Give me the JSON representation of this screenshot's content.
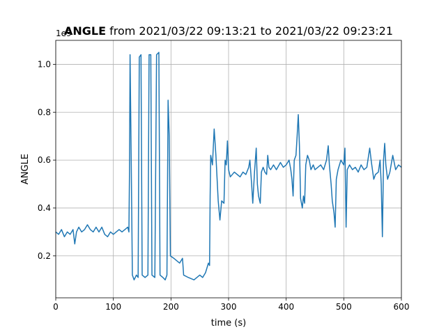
{
  "chart_data": {
    "type": "line",
    "title": {
      "variable": "ANGLE",
      "range": "from 2021/03/22 09:13:21 to 2021/03/22 09:23:21"
    },
    "xlabel": "time (s)",
    "ylabel": "ANGLE",
    "y_offset_label": "1e9",
    "xlim": [
      0,
      600
    ],
    "xticks": [
      0,
      100,
      200,
      300,
      400,
      500,
      600
    ],
    "ylim": [
      0.025,
      1.1
    ],
    "yticks": [
      0.2,
      0.4,
      0.6,
      0.8,
      1.0
    ],
    "grid": true,
    "series": [
      {
        "color": "#1f77b4",
        "x": [
          0,
          5,
          10,
          15,
          20,
          25,
          30,
          33,
          36,
          40,
          45,
          50,
          55,
          60,
          65,
          70,
          75,
          80,
          85,
          90,
          95,
          100,
          105,
          110,
          115,
          120,
          125,
          127,
          128,
          129,
          131,
          133,
          136,
          140,
          143,
          145,
          148,
          150,
          155,
          160,
          162,
          165,
          167,
          172,
          175,
          179,
          181,
          186,
          190,
          193,
          195,
          197,
          199,
          205,
          210,
          215,
          220,
          222,
          230,
          240,
          250,
          255,
          260,
          265,
          267,
          268,
          269,
          272,
          275,
          278,
          282,
          285,
          288,
          292,
          294,
          296,
          298,
          300,
          303,
          310,
          315,
          320,
          325,
          330,
          335,
          337,
          340,
          342,
          345,
          348,
          350,
          352,
          355,
          357,
          360,
          363,
          366,
          368,
          370,
          373,
          378,
          383,
          390,
          395,
          400,
          405,
          408,
          410,
          412,
          414,
          417,
          419,
          421,
          423,
          425,
          428,
          430,
          432,
          434,
          437,
          440,
          443,
          447,
          450,
          455,
          460,
          465,
          470,
          473,
          475,
          478,
          480,
          483,
          485,
          487,
          490,
          495,
          500,
          502,
          504,
          506,
          510,
          515,
          520,
          525,
          530,
          535,
          540,
          545,
          548,
          552,
          555,
          560,
          563,
          565,
          567,
          569,
          571,
          573,
          576,
          580,
          585,
          590,
          595,
          600
        ],
        "values": [
          0.3,
          0.29,
          0.31,
          0.28,
          0.3,
          0.29,
          0.31,
          0.25,
          0.3,
          0.32,
          0.3,
          0.31,
          0.33,
          0.31,
          0.3,
          0.32,
          0.3,
          0.32,
          0.29,
          0.28,
          0.3,
          0.29,
          0.3,
          0.31,
          0.3,
          0.31,
          0.32,
          0.3,
          0.55,
          1.04,
          0.6,
          0.12,
          0.1,
          0.12,
          0.11,
          1.03,
          1.04,
          0.12,
          0.11,
          0.12,
          1.04,
          1.04,
          0.12,
          0.11,
          1.04,
          1.05,
          0.12,
          0.11,
          0.1,
          0.12,
          0.85,
          0.7,
          0.2,
          0.19,
          0.18,
          0.17,
          0.19,
          0.12,
          0.11,
          0.1,
          0.12,
          0.11,
          0.13,
          0.17,
          0.16,
          0.45,
          0.62,
          0.58,
          0.73,
          0.62,
          0.43,
          0.35,
          0.43,
          0.42,
          0.6,
          0.58,
          0.68,
          0.56,
          0.53,
          0.55,
          0.54,
          0.53,
          0.55,
          0.54,
          0.57,
          0.6,
          0.5,
          0.42,
          0.55,
          0.65,
          0.5,
          0.45,
          0.42,
          0.55,
          0.57,
          0.55,
          0.54,
          0.62,
          0.57,
          0.56,
          0.58,
          0.56,
          0.59,
          0.57,
          0.58,
          0.6,
          0.56,
          0.52,
          0.45,
          0.6,
          0.62,
          0.7,
          0.79,
          0.66,
          0.44,
          0.4,
          0.45,
          0.42,
          0.58,
          0.62,
          0.6,
          0.56,
          0.58,
          0.56,
          0.57,
          0.58,
          0.56,
          0.6,
          0.66,
          0.58,
          0.5,
          0.43,
          0.38,
          0.32,
          0.52,
          0.56,
          0.6,
          0.58,
          0.65,
          0.32,
          0.56,
          0.58,
          0.56,
          0.57,
          0.55,
          0.58,
          0.56,
          0.57,
          0.65,
          0.59,
          0.52,
          0.54,
          0.55,
          0.6,
          0.5,
          0.28,
          0.6,
          0.67,
          0.58,
          0.52,
          0.55,
          0.62,
          0.56,
          0.58,
          0.57
        ]
      }
    ]
  }
}
